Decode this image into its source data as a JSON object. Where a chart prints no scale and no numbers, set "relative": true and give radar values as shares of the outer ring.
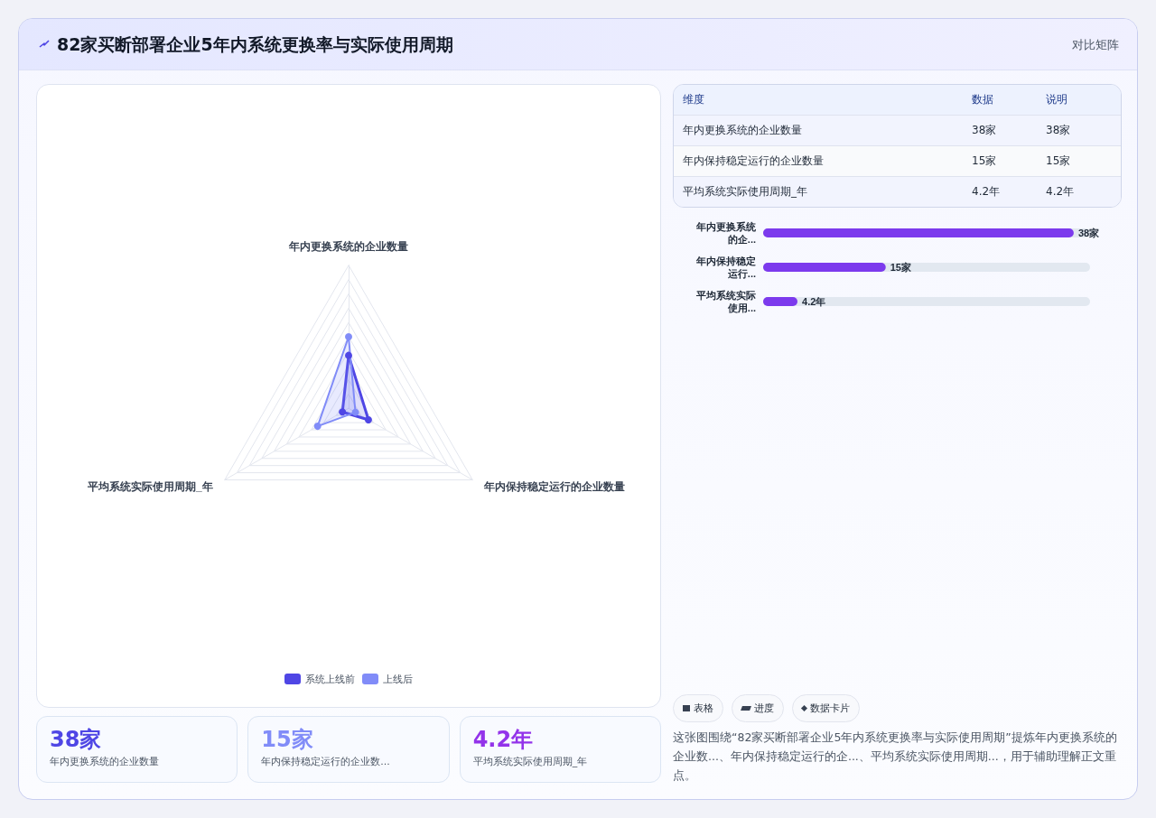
{
  "chart_data": [
    {
      "type": "other",
      "title": "82家买断部署企业5年内系统更换率与实际使用周期",
      "subtitle": "对比矩阵"
    },
    {
      "type": "radar",
      "relative": true,
      "categories": [
        "年内更换系统的企业数量",
        "年内保持稳定运行的企业数量",
        "平均系统实际使用周期_年"
      ],
      "legend": "bottom",
      "marker": "circle",
      "series": [
        {
          "name": "系统上线前",
          "color": "#4f46e5",
          "values": [
            0.37,
            0.16,
            0.05
          ]
        },
        {
          "name": "上线后",
          "color": "#818cf8",
          "values": [
            0.5,
            0.055,
            0.25
          ]
        }
      ]
    },
    {
      "type": "other",
      "annotations": [
        "维度",
        "数据",
        "说明",
        "年内更换系统的企业数量",
        "38家",
        "38家",
        "年内保持稳定运行的企业数量",
        "15家",
        "15家",
        "平均系统实际使用周期_年",
        "4.2年",
        "4.2年"
      ]
    },
    {
      "type": "bar",
      "orientation": "horizontal",
      "tick_labels": "y",
      "categories": [
        "年内更换系统的企...",
        "年内保持稳定运行...",
        "平均系统实际使用..."
      ],
      "values": [
        38,
        15,
        4.2
      ],
      "value_labels": [
        "38家",
        "15家",
        "4.2年"
      ],
      "color": "#7c3aed"
    },
    {
      "type": "other",
      "annotations": [
        "38家",
        "年内更换系统的企业数量",
        "15家",
        "年内保持稳定运行的企业数...",
        "4.2年",
        "平均系统实际使用周期_年"
      ],
      "colors": [
        "#4f46e5",
        "#818cf8",
        "#9333ea"
      ]
    },
    {
      "type": "other",
      "annotations": [
        "表格",
        "进度",
        "数据卡片",
        "这张图围绕“82家买断部署企业5年内系统更换率与实际使用周期”提炼年内更换系统的企业数...、年内保持稳定运行的企...、平均系统实际使用周期...，用于辅助理解正文重点。"
      ]
    }
  ]
}
